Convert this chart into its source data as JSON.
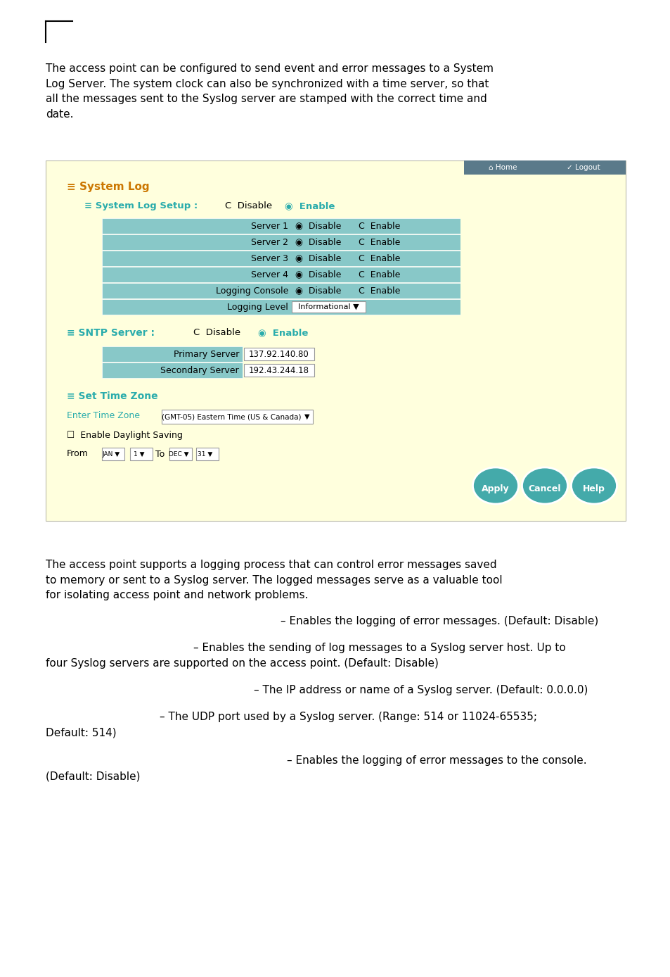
{
  "bg_color": "#ffffff",
  "teal_color": "#2aacac",
  "teal_row": "#88c8c8",
  "orange_color": "#cc7700",
  "panel_bg": "#ffffdd",
  "nav_bg": "#6699aa",
  "primary_server_ip": "137.92.140.80",
  "secondary_server_ip": "192.43.244.18",
  "time_zone_text": "(GMT-05) Eastern Time (US & Canada)",
  "intro_text": "The access point can be configured to send event and error messages to a System\nLog Server. The system clock can also be synchronized with a time server, so that\nall the messages sent to the Syslog server are stamped with the correct time and\ndate.",
  "bottom_text1": "The access point supports a logging process that can control error messages saved\nto memory or sent to a Syslog server. The logged messages serve as a valuable tool\nfor isolating access point and network problems.",
  "bullet1_indent": 0.35,
  "bullet1": "– Enables the logging of error messages. (Default: Disable)",
  "bullet2_indent": 0.22,
  "bullet2_line1": "– Enables the sending of log messages to a Syslog server host. Up to",
  "bullet2_line2": "four Syslog servers are supported on the access point. (Default: Disable)",
  "bullet3_indent": 0.31,
  "bullet3": "– The IP address or name of a Syslog server. (Default: 0.0.0.0)",
  "bullet4_indent": 0.17,
  "bullet4_line1": "– The UDP port used by a Syslog server. (Range: 514 or 11024-65535;",
  "bullet4_line2": "Default: 514)",
  "bullet5_indent": 0.36,
  "bullet5_line1": "– Enables the logging of error messages to the console.",
  "bullet5_line2": "(Default: Disable)"
}
